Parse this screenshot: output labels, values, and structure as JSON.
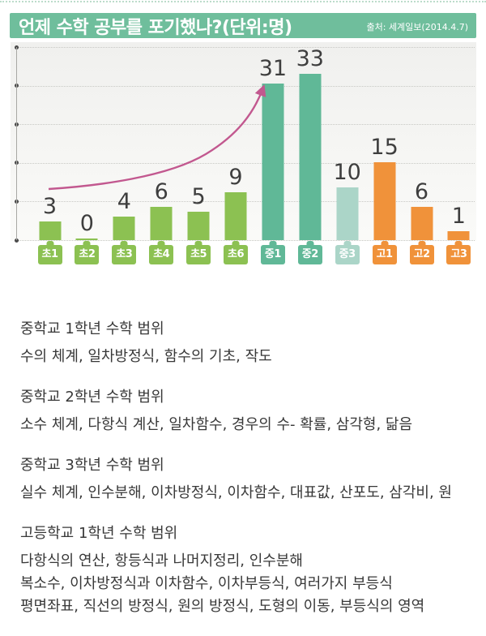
{
  "header": {
    "title": "언제 수학 공부를 포기했나?(단위:명)",
    "source": "출처: 세계일보(2014.4.7)",
    "bg_color": "#6FBE9C"
  },
  "chart_data": {
    "type": "bar",
    "title": "언제 수학 공부를 포기했나?(단위:명)",
    "unit": "명",
    "categories": [
      "초1",
      "초2",
      "초3",
      "초4",
      "초5",
      "초6",
      "중1",
      "중2",
      "중3",
      "고1",
      "고2",
      "고3"
    ],
    "values": [
      3,
      0,
      4,
      6,
      5,
      9,
      31,
      33,
      10,
      15,
      6,
      1
    ],
    "bar_colors": [
      "#8CC152",
      "#8CC152",
      "#8CC152",
      "#8CC152",
      "#8CC152",
      "#8CC152",
      "#60B897",
      "#60B897",
      "#ABD5C8",
      "#F0923A",
      "#F0923A",
      "#F0923A"
    ],
    "xlabel": "",
    "ylabel": "",
    "ylim": [
      0,
      38
    ],
    "gridline_count": 6,
    "grid": true,
    "legend": false,
    "y_tick_labels": [],
    "value_label_color": "#3E3E3E",
    "annotation": {
      "type": "trend-arrow",
      "color": "#C2588F",
      "from_category": "초1",
      "to_category": "중1"
    }
  },
  "sections": [
    {
      "header": "중학교 1학년 수학 범위",
      "lines": [
        "수의 체계, 일차방정식, 함수의 기초, 작도"
      ]
    },
    {
      "header": "중학교 2학년 수학 범위",
      "lines": [
        "소수 체계, 다항식 계산, 일차함수, 경우의 수- 확률, 삼각형, 닮음"
      ]
    },
    {
      "header": "중학교 3학년 수학 범위",
      "lines": [
        "실수 체계, 인수분해, 이차방정식, 이차함수, 대표값, 산포도, 삼각비, 원"
      ]
    },
    {
      "header": "고등학교 1학년 수학 범위",
      "lines": [
        "다항식의 연산, 항등식과 나머지정리, 인수분해",
        "복소수, 이차방정식과 이차함수, 이차부등식, 여러가지 부등식",
        "평면좌표, 직선의 방정식, 원의 방정식, 도형의 이동, 부등식의 영역"
      ]
    }
  ]
}
